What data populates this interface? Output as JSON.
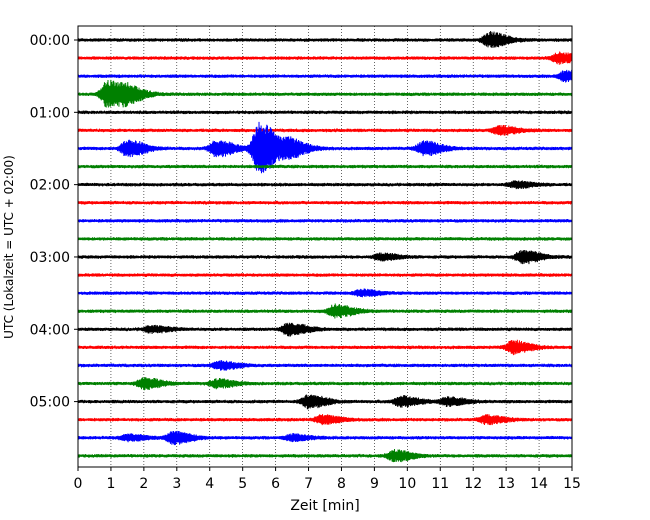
{
  "chart_data": {
    "type": "line",
    "title": "",
    "xlabel": "Zeit  [min]",
    "ylabel": "UTC (Lokalzeit = UTC + 02:00)",
    "xlim": [
      0,
      15
    ],
    "x_ticks": [
      "0",
      "1",
      "2",
      "3",
      "4",
      "5",
      "6",
      "7",
      "8",
      "9",
      "10",
      "11",
      "12",
      "13",
      "14",
      "15"
    ],
    "y_ticks": [
      "00:00",
      "01:00",
      "02:00",
      "03:00",
      "04:00",
      "05:00"
    ],
    "grid": "vertical dotted at each minute",
    "colors": [
      "#000000",
      "#ff0000",
      "#0000ff",
      "#008000"
    ],
    "rows_per_hour": 4,
    "row_count": 24,
    "rows": [
      {
        "start": "00:00",
        "color": "#000000",
        "events": [
          [
            12.5,
            7
          ]
        ]
      },
      {
        "start": "00:15",
        "color": "#ff0000",
        "events": [
          [
            14.6,
            5
          ]
        ]
      },
      {
        "start": "00:30",
        "color": "#0000ff",
        "events": [
          [
            14.8,
            5
          ]
        ]
      },
      {
        "start": "00:45",
        "color": "#008000",
        "events": [
          [
            0.9,
            13
          ],
          [
            1.5,
            6
          ]
        ]
      },
      {
        "start": "01:00",
        "color": "#000000",
        "events": []
      },
      {
        "start": "01:15",
        "color": "#ff0000",
        "events": [
          [
            12.8,
            4
          ]
        ]
      },
      {
        "start": "01:30",
        "color": "#0000ff",
        "events": [
          [
            1.5,
            8
          ],
          [
            4.2,
            8
          ],
          [
            5.5,
            26
          ],
          [
            6.4,
            8
          ],
          [
            10.5,
            7
          ]
        ]
      },
      {
        "start": "01:45",
        "color": "#008000",
        "events": []
      },
      {
        "start": "02:00",
        "color": "#000000",
        "events": [
          [
            13.3,
            3
          ]
        ]
      },
      {
        "start": "02:15",
        "color": "#ff0000",
        "events": []
      },
      {
        "start": "02:30",
        "color": "#0000ff",
        "events": []
      },
      {
        "start": "02:45",
        "color": "#008000",
        "events": []
      },
      {
        "start": "03:00",
        "color": "#000000",
        "events": [
          [
            13.5,
            6
          ],
          [
            9.2,
            3
          ]
        ]
      },
      {
        "start": "03:15",
        "color": "#ff0000",
        "events": []
      },
      {
        "start": "03:30",
        "color": "#0000ff",
        "events": [
          [
            8.6,
            3
          ]
        ]
      },
      {
        "start": "03:45",
        "color": "#008000",
        "events": [
          [
            7.8,
            6
          ]
        ]
      },
      {
        "start": "04:00",
        "color": "#000000",
        "events": [
          [
            6.4,
            6
          ],
          [
            2.2,
            3
          ]
        ]
      },
      {
        "start": "04:15",
        "color": "#ff0000",
        "events": [
          [
            13.2,
            6
          ]
        ]
      },
      {
        "start": "04:30",
        "color": "#0000ff",
        "events": [
          [
            4.3,
            4
          ]
        ]
      },
      {
        "start": "04:45",
        "color": "#008000",
        "events": [
          [
            2.0,
            5
          ],
          [
            4.2,
            4
          ]
        ]
      },
      {
        "start": "05:00",
        "color": "#000000",
        "events": [
          [
            7.0,
            6
          ],
          [
            9.8,
            5
          ],
          [
            11.2,
            4
          ]
        ]
      },
      {
        "start": "05:15",
        "color": "#ff0000",
        "events": [
          [
            7.4,
            4
          ],
          [
            12.4,
            4
          ]
        ]
      },
      {
        "start": "05:30",
        "color": "#0000ff",
        "events": [
          [
            2.9,
            6
          ],
          [
            1.5,
            3
          ],
          [
            6.5,
            3
          ]
        ]
      },
      {
        "start": "05:45",
        "color": "#008000",
        "events": [
          [
            9.6,
            5
          ]
        ]
      }
    ]
  }
}
